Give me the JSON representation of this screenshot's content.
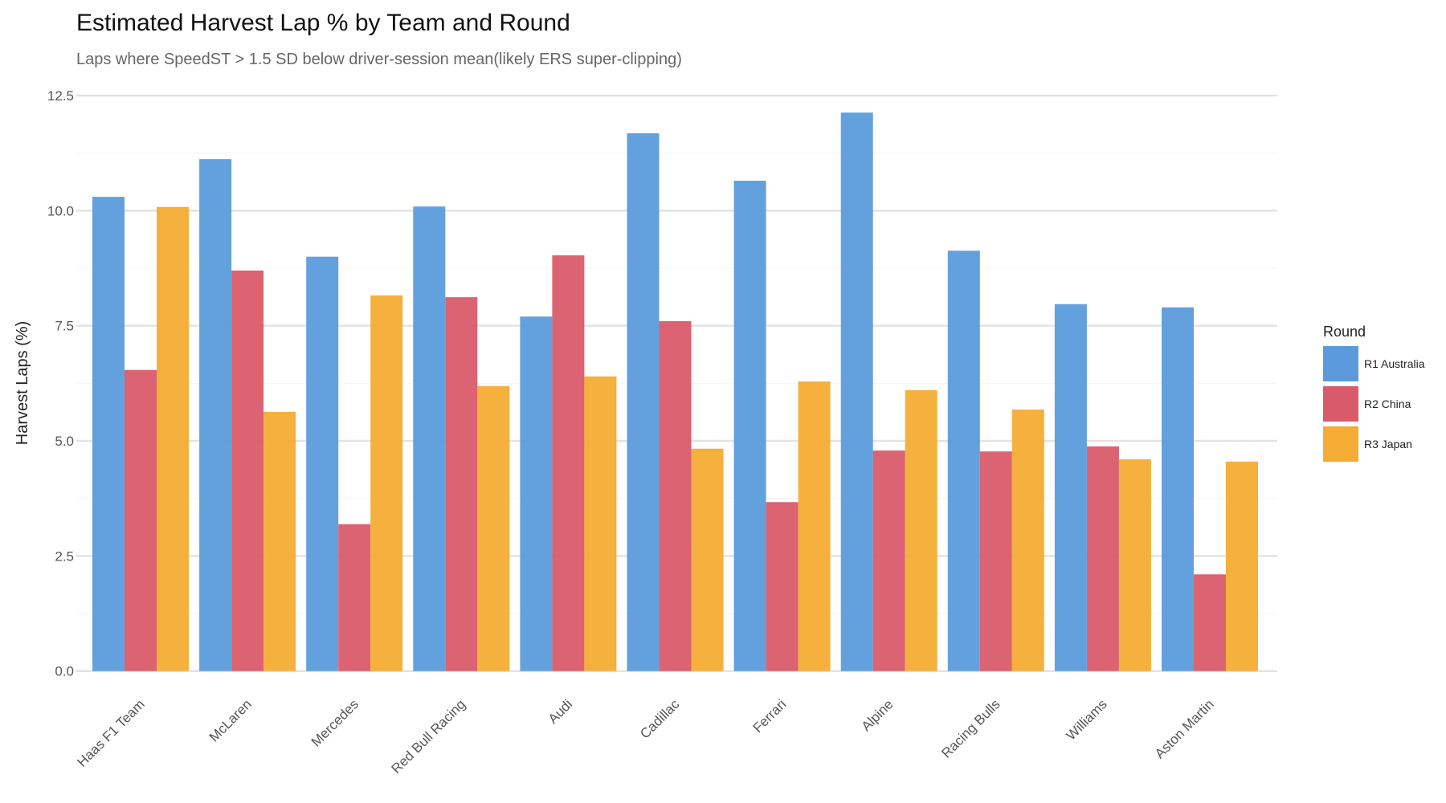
{
  "chart_data": {
    "type": "bar",
    "title": "Estimated Harvest Lap % by Team and Round",
    "subtitle": "Laps where SpeedST > 1.5 SD below driver-session mean(likely ERS super-clipping)",
    "xlabel": "",
    "ylabel": "Harvest Laps (%)",
    "ylim": [
      0,
      12.5
    ],
    "yticks": [
      0.0,
      2.5,
      5.0,
      7.5,
      10.0,
      12.5
    ],
    "ytick_labels": [
      "0.0",
      "2.5",
      "5.0",
      "7.5",
      "10.0",
      "12.5"
    ],
    "grid": true,
    "categories": [
      "Haas F1 Team",
      "McLaren",
      "Mercedes",
      "Red Bull Racing",
      "Audi",
      "Cadillac",
      "Ferrari",
      "Alpine",
      "Racing Bulls",
      "Williams",
      "Aston Martin"
    ],
    "legend": {
      "title": "Round",
      "position": "right"
    },
    "series": [
      {
        "name": "R1 Australia",
        "color": "#5b9bdc",
        "values": [
          10.3,
          11.12,
          9.0,
          10.09,
          7.7,
          11.68,
          10.65,
          12.13,
          9.13,
          7.97,
          7.9
        ]
      },
      {
        "name": "R2 China",
        "color": "#d95b6a",
        "values": [
          6.54,
          8.7,
          3.19,
          8.12,
          9.03,
          7.6,
          3.67,
          4.79,
          4.77,
          4.88,
          2.1
        ]
      },
      {
        "name": "R3 Japan",
        "color": "#f4ac34",
        "values": [
          10.08,
          5.63,
          8.16,
          6.19,
          6.4,
          4.83,
          6.29,
          6.1,
          5.68,
          4.6,
          4.55
        ]
      }
    ]
  }
}
